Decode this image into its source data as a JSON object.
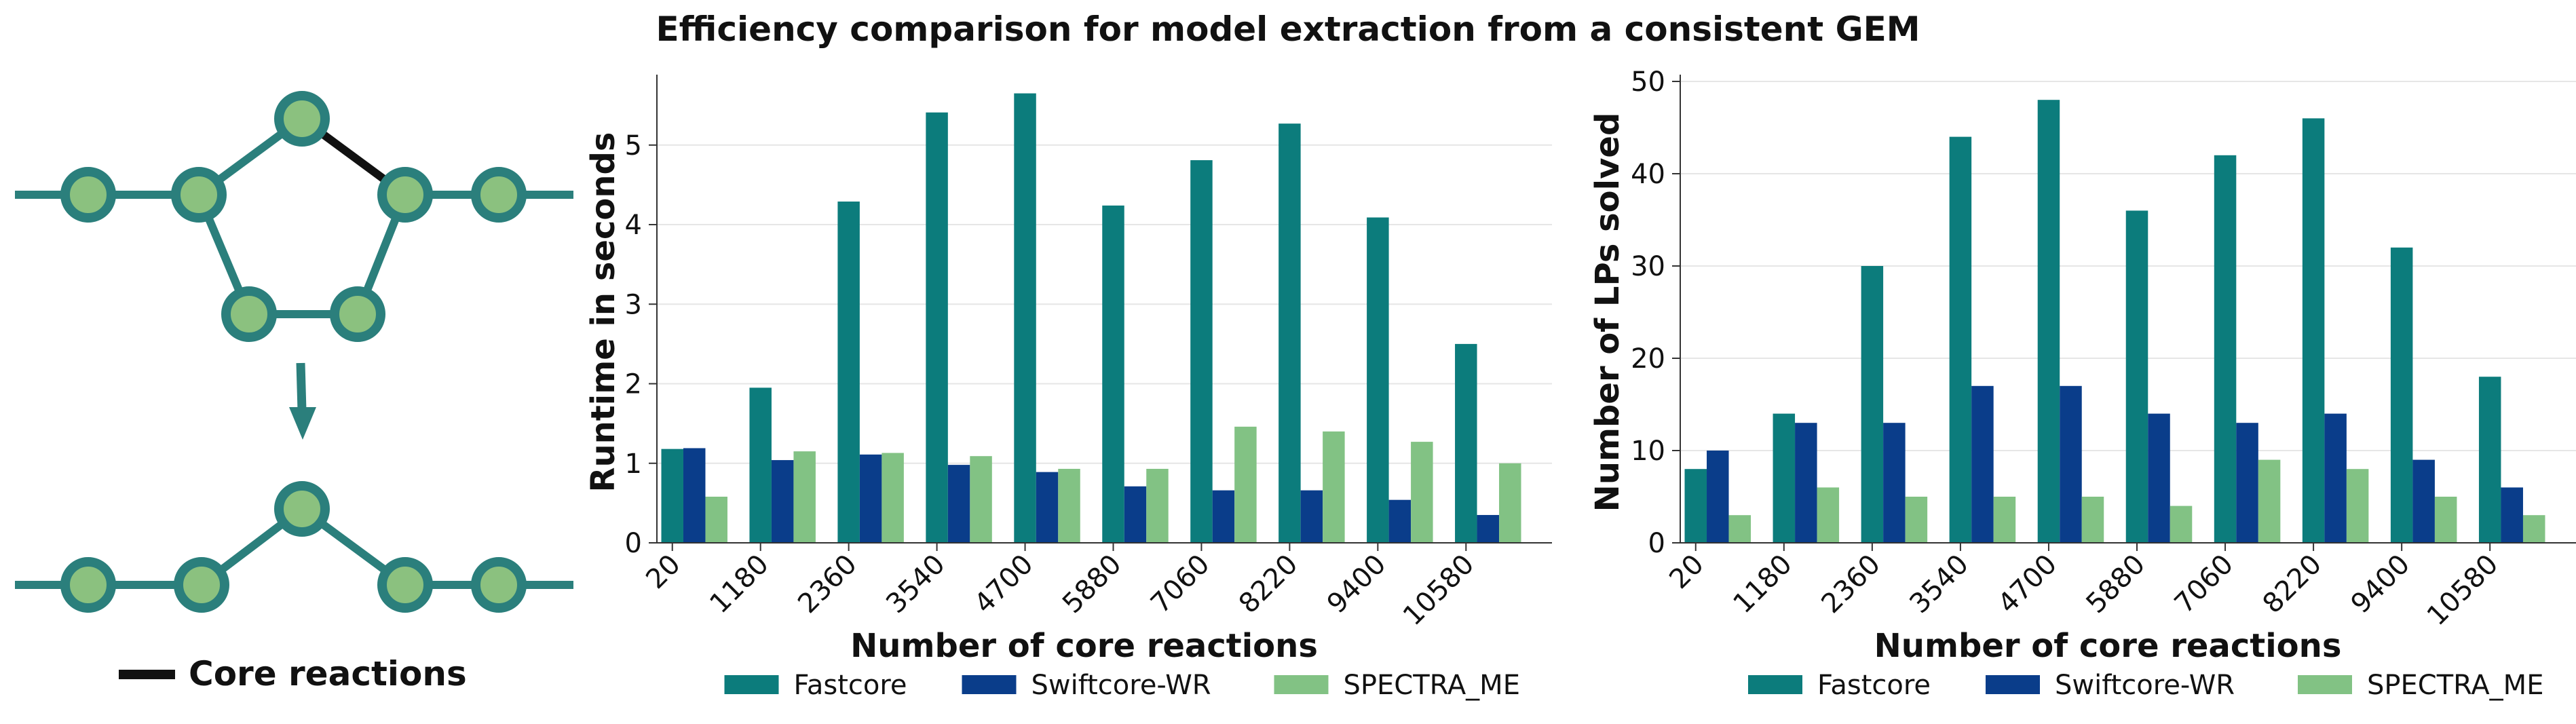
{
  "title": "Efficiency comparison for model extraction from a consistent GEM",
  "diagram": {
    "legend_label": "Core reactions",
    "colors": {
      "node_fill": "#8bc17f",
      "node_stroke": "#2b7f7c",
      "edge": "#2b7f7c",
      "core_edge": "#111111",
      "arrow": "#2b7f7c"
    }
  },
  "series_colors": {
    "Fastcore": "#0c7c7c",
    "Swiftcore-WR": "#0a3d8a",
    "SPECTRA_ME": "#82c284"
  },
  "chart_data": [
    {
      "type": "bar",
      "title": "",
      "xlabel": "Number of core reactions",
      "ylabel": "Runtime in seconds",
      "categories": [
        "20",
        "1180",
        "2360",
        "3540",
        "4700",
        "5880",
        "7060",
        "8220",
        "9400",
        "10580"
      ],
      "ylim": [
        0,
        5.8
      ],
      "yticks": [
        0,
        1,
        2,
        3,
        4,
        5
      ],
      "grid": "horizontal",
      "legend": "bottom",
      "series": [
        {
          "name": "Fastcore",
          "values": [
            1.18,
            1.95,
            4.29,
            5.41,
            5.65,
            4.24,
            4.81,
            5.27,
            4.09,
            2.5
          ]
        },
        {
          "name": "Swiftcore-WR",
          "values": [
            1.19,
            1.04,
            1.11,
            0.98,
            0.89,
            0.71,
            0.66,
            0.66,
            0.54,
            0.35
          ]
        },
        {
          "name": "SPECTRA_ME",
          "values": [
            0.58,
            1.15,
            1.13,
            1.09,
            0.93,
            0.93,
            1.46,
            1.4,
            1.27,
            1.0
          ]
        }
      ]
    },
    {
      "type": "bar",
      "title": "",
      "xlabel": "Number of core reactions",
      "ylabel": "Number of LPs solved",
      "categories": [
        "20",
        "1180",
        "2360",
        "3540",
        "4700",
        "5880",
        "7060",
        "8220",
        "9400",
        "10580"
      ],
      "ylim": [
        0,
        50
      ],
      "yticks": [
        0,
        10,
        20,
        30,
        40,
        50
      ],
      "grid": "horizontal",
      "legend": "bottom",
      "series": [
        {
          "name": "Fastcore",
          "values": [
            8,
            14,
            30,
            44,
            48,
            36,
            42,
            46,
            32,
            18
          ]
        },
        {
          "name": "Swiftcore-WR",
          "values": [
            10,
            13,
            13,
            17,
            17,
            14,
            13,
            14,
            9,
            6
          ]
        },
        {
          "name": "SPECTRA_ME",
          "values": [
            3,
            6,
            5,
            5,
            5,
            4,
            9,
            8,
            5,
            3
          ]
        }
      ]
    }
  ]
}
